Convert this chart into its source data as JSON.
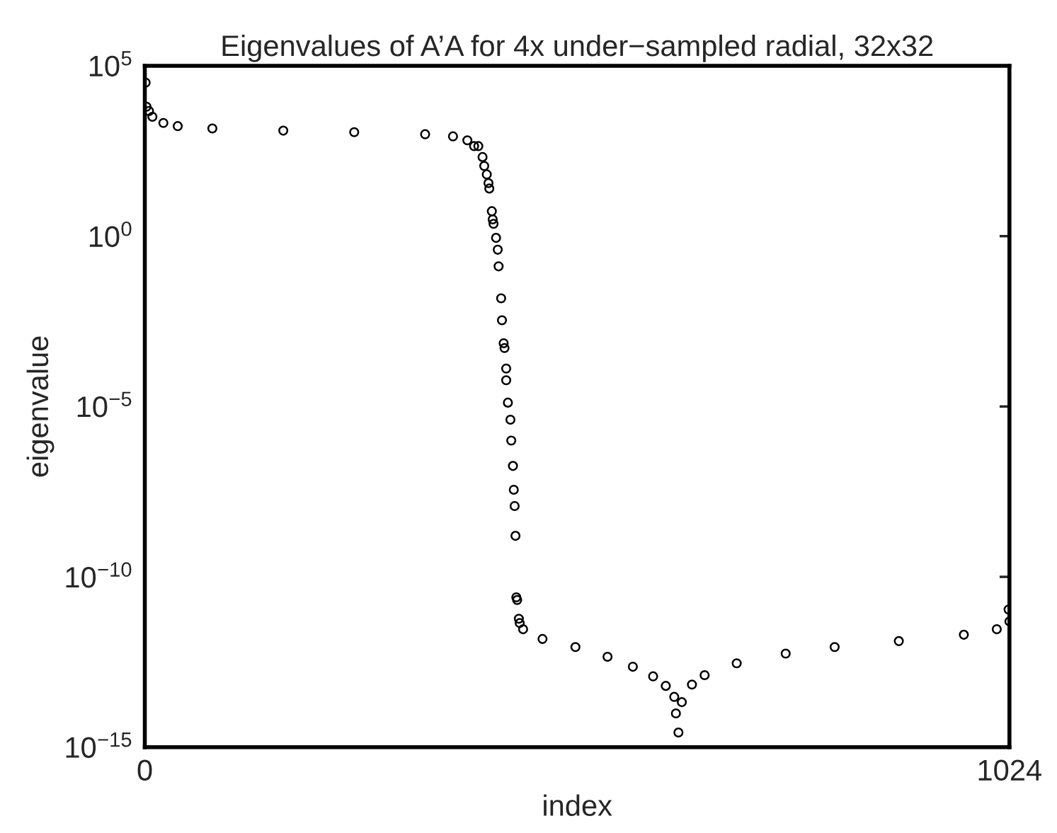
{
  "chart_data": {
    "type": "scatter",
    "title": "Eigenvalues of A’A for 4x under−sampled radial, 32x32",
    "xlabel": "index",
    "ylabel": "eigenvalue",
    "log": "y",
    "grid": false,
    "marker": "circle",
    "xlim": [
      0,
      1024
    ],
    "xticks": [
      0,
      1024
    ],
    "ylim": [
      1e-15,
      100000.0
    ],
    "yticks": [
      {
        "value": 1e-15,
        "label": "10$^{−15}$"
      },
      {
        "value": 1e-10,
        "label": "10$^{−10}$"
      },
      {
        "value": 1e-05,
        "label": "10$^{−5}$"
      },
      {
        "value": 1,
        "label": "10$^{0}$"
      },
      {
        "value": 100000.0,
        "label": "10$^{5}$"
      }
    ],
    "series": [
      {
        "color": "#000000",
        "x": [
          1,
          2,
          5,
          9,
          22,
          39,
          80,
          164,
          248,
          332,
          365,
          382,
          390,
          395,
          400,
          402,
          405,
          407,
          408,
          411,
          412,
          413,
          416,
          418,
          419,
          422,
          423,
          425,
          426,
          428,
          428,
          430,
          433,
          434,
          436,
          437,
          438,
          439,
          440,
          441,
          443,
          444,
          448,
          471,
          510,
          548,
          578,
          602,
          617,
          627,
          629,
          632,
          636,
          648,
          663,
          701,
          759,
          817,
          893,
          970,
          1009,
          1024,
          1023
        ],
        "values": [
          32000.0,
          6300,
          4700,
          3200,
          2100,
          1700,
          1450,
          1250,
          1130,
          980,
          850,
          650,
          440,
          440,
          210,
          115,
          65,
          36,
          25,
          5.4,
          3.1,
          2.3,
          0.89,
          0.4,
          0.13,
          0.015,
          0.0034,
          0.00072,
          0.00052,
          0.00013,
          5.9e-05,
          1.3e-05,
          4.1e-06,
          1e-06,
          1.8e-07,
          3.6e-08,
          1.2e-08,
          1.6e-09,
          2.5e-11,
          2.1e-11,
          5.9e-12,
          4.4e-12,
          2.9e-12,
          1.5e-12,
          8.7e-13,
          4.5e-13,
          2.3e-13,
          1.2e-13,
          6.3e-14,
          3e-14,
          9.8e-15,
          2.7e-15,
          2.1e-14,
          6.9e-14,
          1.3e-13,
          2.9e-13,
          5.6e-13,
          8.7e-13,
          1.3e-12,
          2e-12,
          2.9e-12,
          4.9e-12,
          1.1e-11
        ]
      }
    ]
  }
}
